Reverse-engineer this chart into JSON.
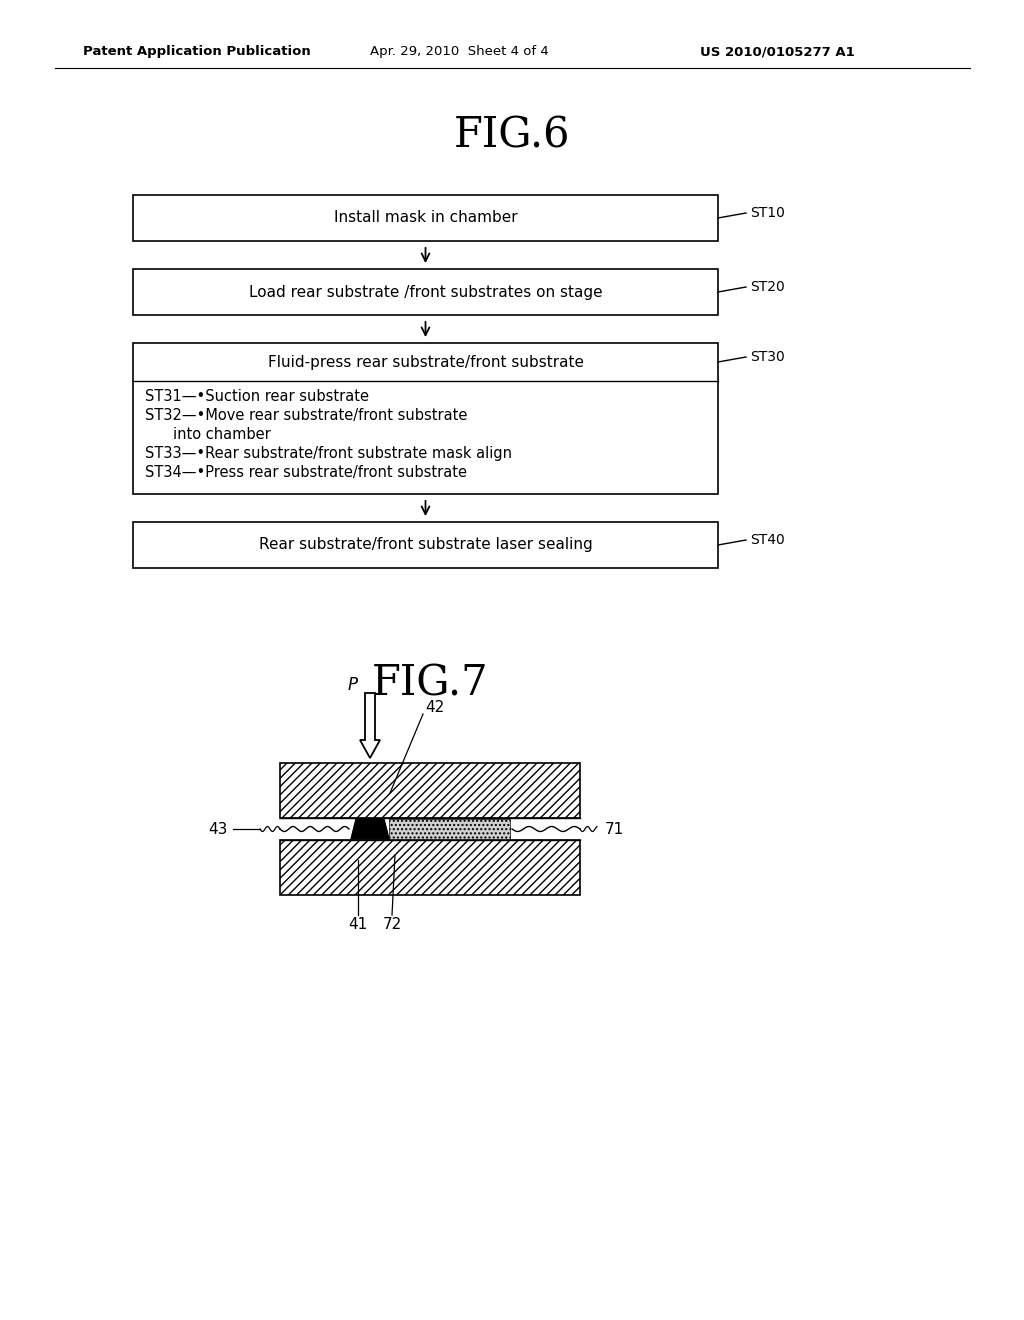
{
  "bg_color": "#ffffff",
  "header_left": "Patent Application Publication",
  "header_mid": "Apr. 29, 2010  Sheet 4 of 4",
  "header_right": "US 2010/0105277 A1",
  "fig6_title": "FIG.6",
  "fig7_title": "FIG.7",
  "flowchart": {
    "box0_label": "Install mask in chamber",
    "box0_tag": "ST10",
    "box1_label": "Load rear substrate /front substrates on stage",
    "box1_tag": "ST20",
    "box2_label": "Fluid-press rear substrate/front substrate",
    "box2_tag": "ST30",
    "box3_label": "Rear substrate/front substrate laser sealing",
    "box3_tag": "ST40",
    "sub_line1": "ST31—•Suction rear substrate",
    "sub_line2a": "ST32—•Move rear substrate/front substrate",
    "sub_line2b": "         into chamber",
    "sub_line3": "ST33—•Rear substrate/front substrate mask align",
    "sub_line4": "ST34—•Press rear substrate/front substrate"
  },
  "fig7": {
    "label_P": "P",
    "label_42": "42",
    "label_43": "43",
    "label_71": "71",
    "label_41": "41",
    "label_72": "72"
  }
}
